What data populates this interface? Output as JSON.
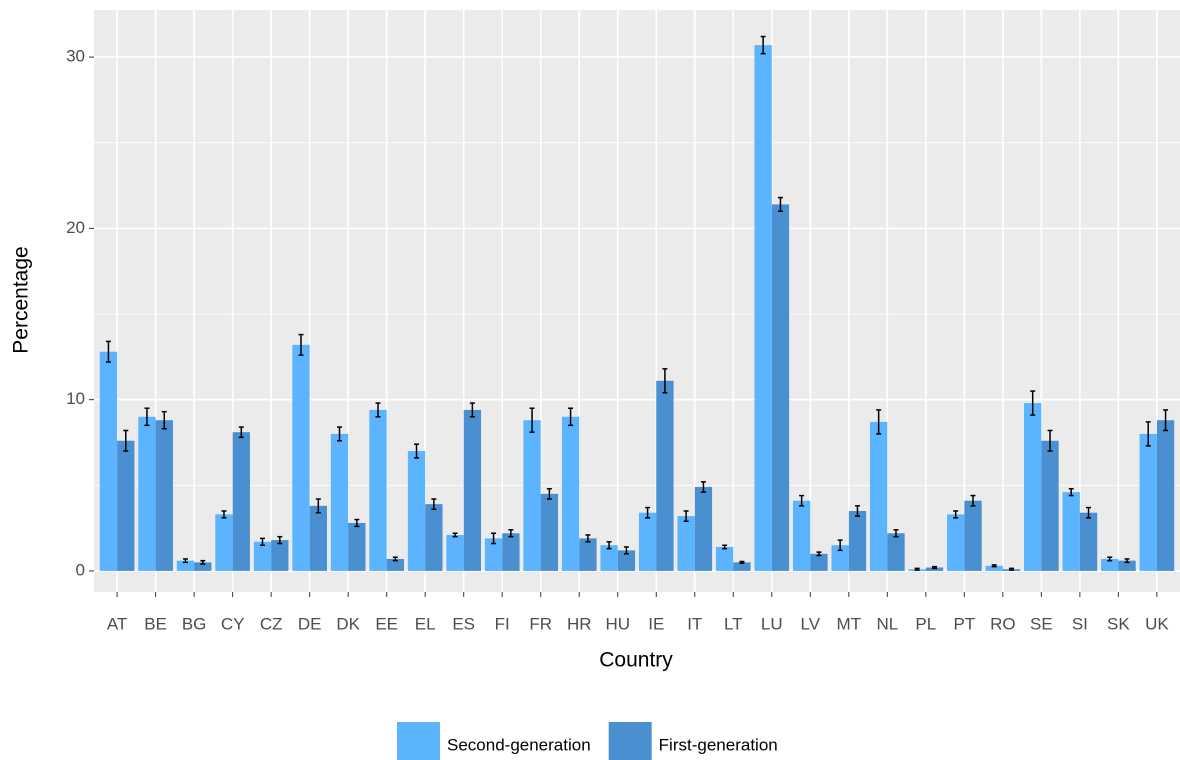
{
  "chart_data": {
    "type": "bar",
    "x_label": "Country",
    "y_label": "Percentage",
    "categories": [
      "AT",
      "BE",
      "BG",
      "CY",
      "CZ",
      "DE",
      "DK",
      "EE",
      "EL",
      "ES",
      "FI",
      "FR",
      "HR",
      "HU",
      "IE",
      "IT",
      "LT",
      "LU",
      "LV",
      "MT",
      "NL",
      "PL",
      "PT",
      "RO",
      "SE",
      "SI",
      "SK",
      "UK"
    ],
    "series": [
      {
        "name": "Second-generation",
        "color": "#5cb4ff",
        "values": [
          12.8,
          9.0,
          0.6,
          3.3,
          1.7,
          13.2,
          8.0,
          9.4,
          7.0,
          2.1,
          1.9,
          8.8,
          9.0,
          1.5,
          3.4,
          3.2,
          1.4,
          30.7,
          4.1,
          1.5,
          8.7,
          0.1,
          3.3,
          0.3,
          9.8,
          4.6,
          0.7,
          8.0
        ],
        "errors": [
          0.6,
          0.5,
          0.1,
          0.2,
          0.2,
          0.6,
          0.4,
          0.4,
          0.4,
          0.1,
          0.3,
          0.7,
          0.5,
          0.2,
          0.3,
          0.3,
          0.1,
          0.5,
          0.3,
          0.3,
          0.7,
          0.05,
          0.2,
          0.05,
          0.7,
          0.2,
          0.1,
          0.7
        ]
      },
      {
        "name": "First-generation",
        "color": "#4a8fcf",
        "values": [
          7.6,
          8.8,
          0.5,
          8.1,
          1.8,
          3.8,
          2.8,
          0.7,
          3.9,
          9.4,
          2.2,
          4.5,
          1.9,
          1.2,
          11.1,
          4.9,
          0.5,
          21.4,
          1.0,
          3.5,
          2.2,
          0.2,
          4.1,
          0.1,
          7.6,
          3.4,
          0.6,
          8.8
        ],
        "errors": [
          0.6,
          0.5,
          0.1,
          0.3,
          0.2,
          0.4,
          0.2,
          0.1,
          0.3,
          0.4,
          0.2,
          0.3,
          0.2,
          0.2,
          0.7,
          0.3,
          0.05,
          0.4,
          0.1,
          0.3,
          0.2,
          0.05,
          0.3,
          0.05,
          0.6,
          0.3,
          0.1,
          0.6
        ]
      }
    ],
    "ylim": [
      -1.23,
      32.75
    ],
    "yticks": [
      0,
      10,
      20,
      30
    ],
    "grid": true,
    "legend": "bottom"
  }
}
